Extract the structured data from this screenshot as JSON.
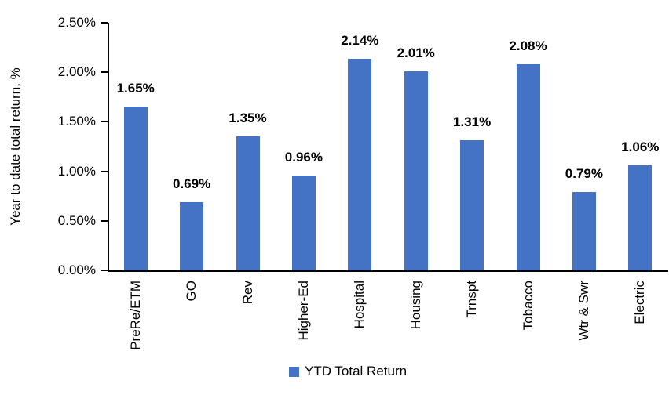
{
  "chart_data": {
    "type": "bar",
    "title": "",
    "categories": [
      "PreRe/ETM",
      "GO",
      "Rev",
      "Higher-Ed",
      "Hospital",
      "Housing",
      "Trnspt",
      "Tobacco",
      "Wtr & Swr",
      "Electric"
    ],
    "values": [
      1.65,
      0.69,
      1.35,
      0.96,
      2.14,
      2.01,
      1.31,
      2.08,
      0.79,
      1.06
    ],
    "data_labels": [
      "1.65%",
      "0.69%",
      "1.35%",
      "0.96%",
      "2.14%",
      "2.01%",
      "1.31%",
      "2.08%",
      "0.79%",
      "1.06%"
    ],
    "series": [
      {
        "name": "YTD Total Return",
        "values": [
          1.65,
          0.69,
          1.35,
          0.96,
          2.14,
          2.01,
          1.31,
          2.08,
          0.79,
          1.06
        ]
      }
    ],
    "xlabel": "",
    "ylabel": "Year to date total return, %",
    "ylim": [
      0,
      2.5
    ],
    "y_ticks": [
      {
        "value": 0.0,
        "label": "0.00%"
      },
      {
        "value": 0.5,
        "label": "0.50%"
      },
      {
        "value": 1.0,
        "label": "1.00%"
      },
      {
        "value": 1.5,
        "label": "1.50%"
      },
      {
        "value": 2.0,
        "label": "2.00%"
      },
      {
        "value": 2.5,
        "label": "2.50%"
      }
    ],
    "grid": false,
    "legend": {
      "position": "bottom",
      "entries": [
        "YTD Total Return"
      ]
    },
    "bar_color": "#4472C4",
    "axis_color": "#000000",
    "text_color": "#000000"
  }
}
